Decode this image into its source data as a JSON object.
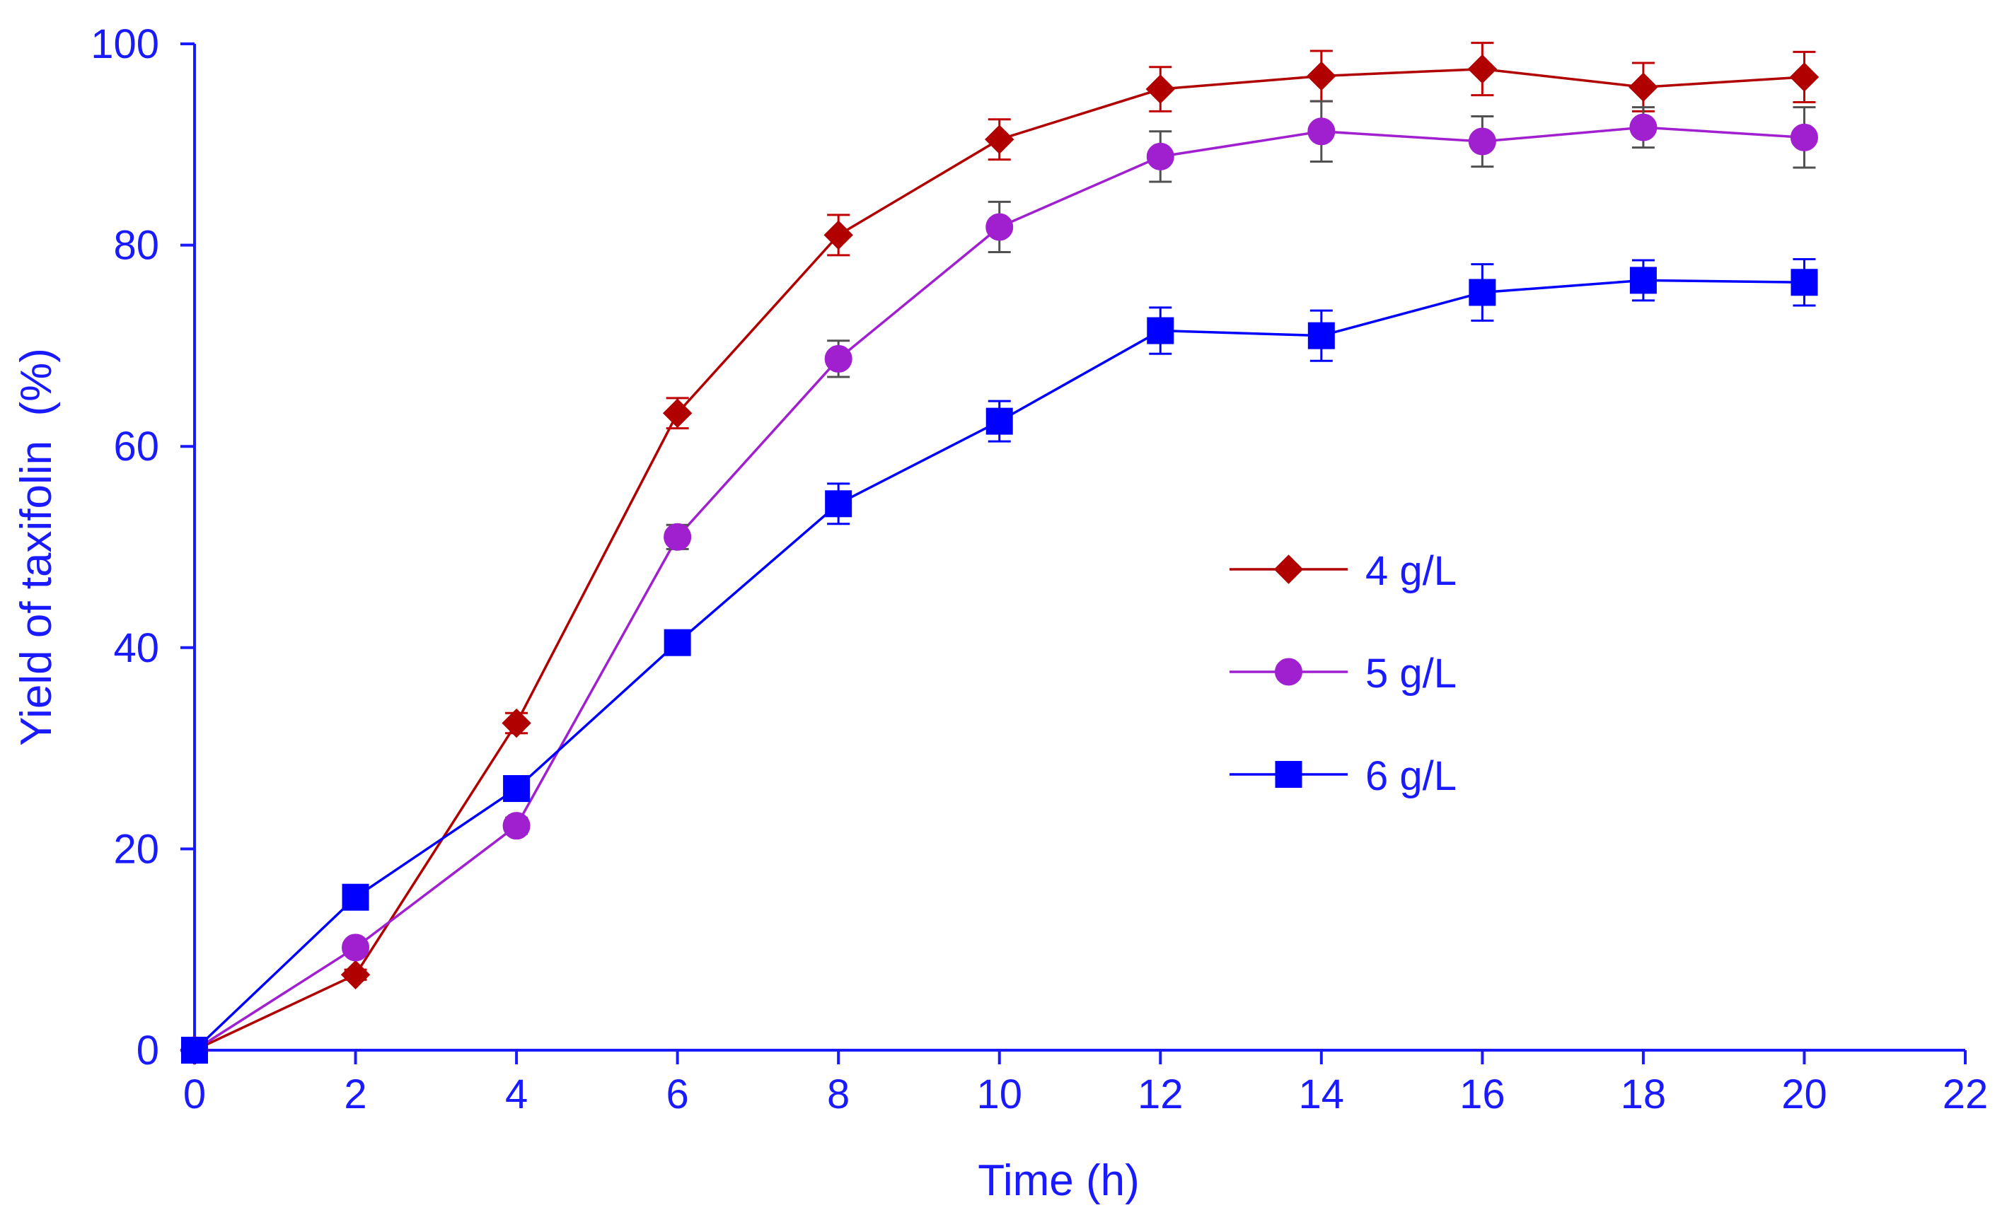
{
  "chart_data": {
    "type": "line",
    "title": "",
    "xlabel": "Time (h)",
    "ylabel": "Yield of taxifolin  (%)",
    "xlim": [
      0,
      22
    ],
    "ylim": [
      0,
      100
    ],
    "xticks": [
      0,
      2,
      4,
      6,
      8,
      10,
      12,
      14,
      16,
      18,
      20,
      22
    ],
    "yticks": [
      0,
      20,
      40,
      60,
      80,
      100
    ],
    "grid": false,
    "legend_position": "center-right",
    "axis_color": "#1a1aff",
    "x": [
      0,
      2,
      4,
      6,
      8,
      10,
      12,
      14,
      16,
      18,
      20
    ],
    "series": [
      {
        "name": "4 g/L",
        "color": "#b00000",
        "marker": "diamond",
        "values": [
          0,
          7.5,
          32.5,
          63.3,
          81.0,
          90.5,
          95.5,
          96.8,
          97.5,
          95.7,
          96.7
        ],
        "errors": [
          0,
          0.5,
          1.0,
          1.5,
          2.0,
          2.0,
          2.2,
          2.5,
          2.6,
          2.4,
          2.5
        ]
      },
      {
        "name": "5 g/L",
        "color": "#a020d0",
        "marker": "circle",
        "values": [
          0,
          10.2,
          22.3,
          51.0,
          68.7,
          81.8,
          88.8,
          91.3,
          90.3,
          91.7,
          90.7
        ],
        "errors": [
          0,
          0.5,
          0.8,
          1.2,
          1.8,
          2.5,
          2.5,
          3.0,
          2.5,
          2.0,
          3.0
        ]
      },
      {
        "name": "6 g/L",
        "color": "#0000ff",
        "marker": "square",
        "values": [
          0,
          15.2,
          26.0,
          40.5,
          54.3,
          62.5,
          71.5,
          71.0,
          75.3,
          76.5,
          76.3
        ],
        "errors": [
          0,
          0.4,
          0.6,
          0.7,
          2.0,
          2.0,
          2.3,
          2.5,
          2.8,
          2.0,
          2.3
        ]
      }
    ]
  }
}
